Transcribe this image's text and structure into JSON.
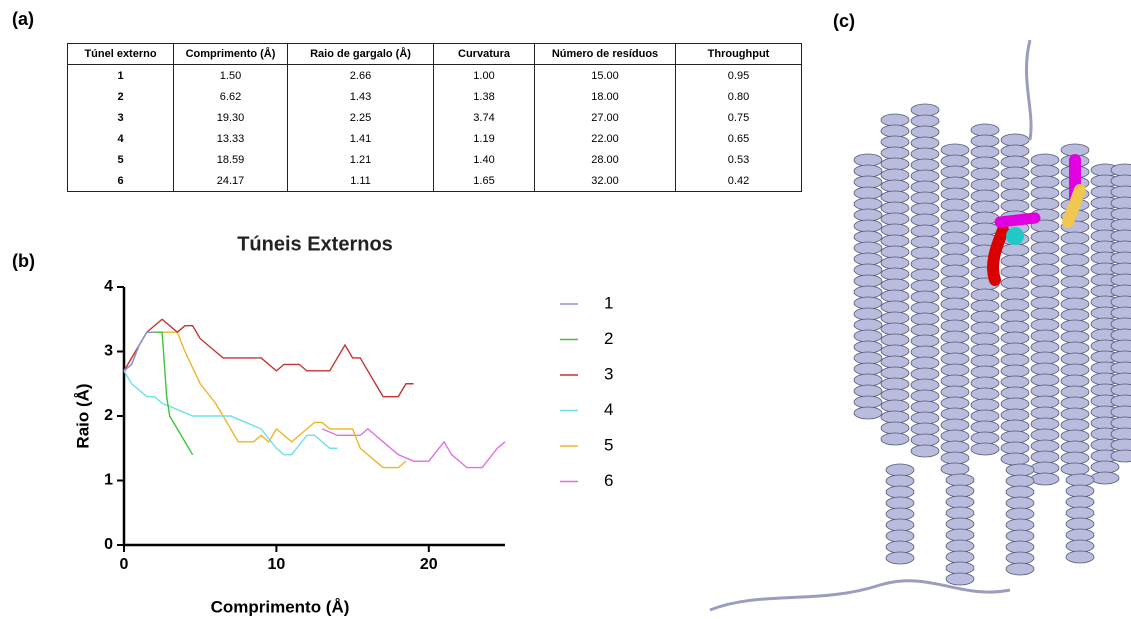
{
  "panels": {
    "a": "(a)",
    "b": "(b)",
    "c": "(c)"
  },
  "table": {
    "header": [
      "Túnel externo",
      "Comprimento (Å)",
      "Raio de gargalo (Å)",
      "Curvatura",
      "Número de resíduos",
      "Throughput"
    ],
    "rows": [
      [
        "1",
        "1.50",
        "2.66",
        "1.00",
        "15.00",
        "0.95"
      ],
      [
        "2",
        "6.62",
        "1.43",
        "1.38",
        "18.00",
        "0.80"
      ],
      [
        "3",
        "19.30",
        "2.25",
        "3.74",
        "27.00",
        "0.75"
      ],
      [
        "4",
        "13.33",
        "1.41",
        "1.19",
        "22.00",
        "0.65"
      ],
      [
        "5",
        "18.59",
        "1.21",
        "1.40",
        "28.00",
        "0.53"
      ],
      [
        "6",
        "24.17",
        "1.11",
        "1.65",
        "32.00",
        "0.42"
      ]
    ]
  },
  "chart_data": {
    "type": "line",
    "title": "Túneis Externos",
    "x_label": "Comprimento (Å)",
    "y_label": "Raio (Å)",
    "xlim": [
      0,
      25
    ],
    "ylim": [
      0,
      4
    ],
    "xticks": [
      0,
      10,
      20
    ],
    "yticks": [
      0,
      1,
      2,
      3,
      4
    ],
    "grid": false,
    "series": [
      {
        "name": "1",
        "color": "#8f8fe0",
        "x": [
          0,
          0.5,
          1,
          1.5,
          2
        ],
        "values": [
          2.7,
          2.8,
          3.1,
          3.3,
          3.3
        ]
      },
      {
        "name": "2",
        "color": "#3cc43c",
        "x": [
          0,
          0.5,
          1,
          1.5,
          2.5,
          2.8,
          3,
          4.5
        ],
        "values": [
          2.7,
          2.8,
          3.1,
          3.3,
          3.3,
          2.3,
          2.0,
          1.4
        ]
      },
      {
        "name": "3",
        "color": "#c83232",
        "x": [
          0,
          1,
          1.5,
          2.5,
          3.5,
          4,
          4.5,
          5,
          6,
          6.5,
          9,
          10,
          10.5,
          11.5,
          12,
          13.5,
          14,
          14.5,
          15,
          15.5,
          16.5,
          17,
          18,
          18.5,
          19
        ],
        "values": [
          2.7,
          3.1,
          3.3,
          3.5,
          3.3,
          3.4,
          3.4,
          3.2,
          3.0,
          2.9,
          2.9,
          2.7,
          2.8,
          2.8,
          2.7,
          2.7,
          2.9,
          3.1,
          2.9,
          2.9,
          2.5,
          2.3,
          2.3,
          2.5,
          2.5
        ]
      },
      {
        "name": "4",
        "color": "#6fe0e8",
        "x": [
          0,
          0.5,
          1,
          1.5,
          2,
          2.5,
          3.5,
          4.5,
          7,
          8,
          9,
          10,
          10.5,
          11,
          12,
          12.5,
          13.5,
          14
        ],
        "values": [
          2.7,
          2.5,
          2.4,
          2.3,
          2.3,
          2.2,
          2.1,
          2.0,
          2.0,
          1.9,
          1.8,
          1.5,
          1.4,
          1.4,
          1.7,
          1.7,
          1.5,
          1.5
        ]
      },
      {
        "name": "5",
        "color": "#f0b429",
        "x": [
          0,
          1,
          1.5,
          3.5,
          4,
          5,
          6,
          7,
          7.5,
          8.5,
          9,
          9.5,
          10,
          11,
          12,
          12.5,
          13,
          13.5,
          15,
          15.5,
          17,
          18,
          18.5
        ],
        "values": [
          2.7,
          3.1,
          3.3,
          3.3,
          3.0,
          2.5,
          2.2,
          1.8,
          1.6,
          1.6,
          1.7,
          1.6,
          1.8,
          1.6,
          1.8,
          1.9,
          1.9,
          1.8,
          1.8,
          1.5,
          1.2,
          1.2,
          1.3
        ]
      },
      {
        "name": "6",
        "color": "#e070e0",
        "x": [
          13,
          14,
          15.5,
          16,
          17,
          18,
          19,
          20,
          21,
          21.5,
          22.5,
          23.5,
          24.5,
          25
        ],
        "values": [
          1.8,
          1.7,
          1.7,
          1.8,
          1.6,
          1.4,
          1.3,
          1.3,
          1.6,
          1.4,
          1.2,
          1.2,
          1.5,
          1.6
        ]
      }
    ]
  }
}
